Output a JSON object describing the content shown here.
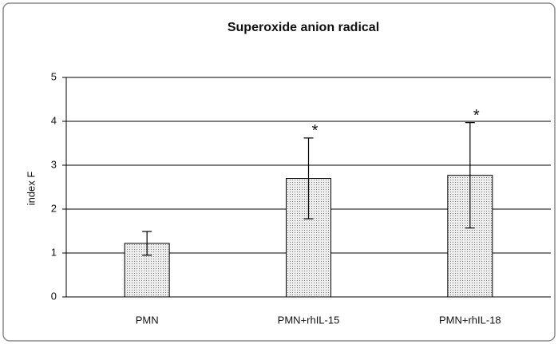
{
  "chart_data": {
    "type": "bar",
    "title": "Superoxide anion radical",
    "ylabel": "index F",
    "categories": [
      "PMN",
      "PMN+rhIL-15",
      "PMN+rhIL-18"
    ],
    "values": [
      1.22,
      2.7,
      2.77
    ],
    "errors": [
      0.27,
      0.92,
      1.2
    ],
    "annotations": [
      {
        "index": 1,
        "text": "*"
      },
      {
        "index": 2,
        "text": "*"
      }
    ],
    "color": "#d9d9d9",
    "ylim": [
      0,
      5
    ],
    "yticks": [
      0,
      1,
      2,
      3,
      4,
      5
    ],
    "grid": true
  }
}
